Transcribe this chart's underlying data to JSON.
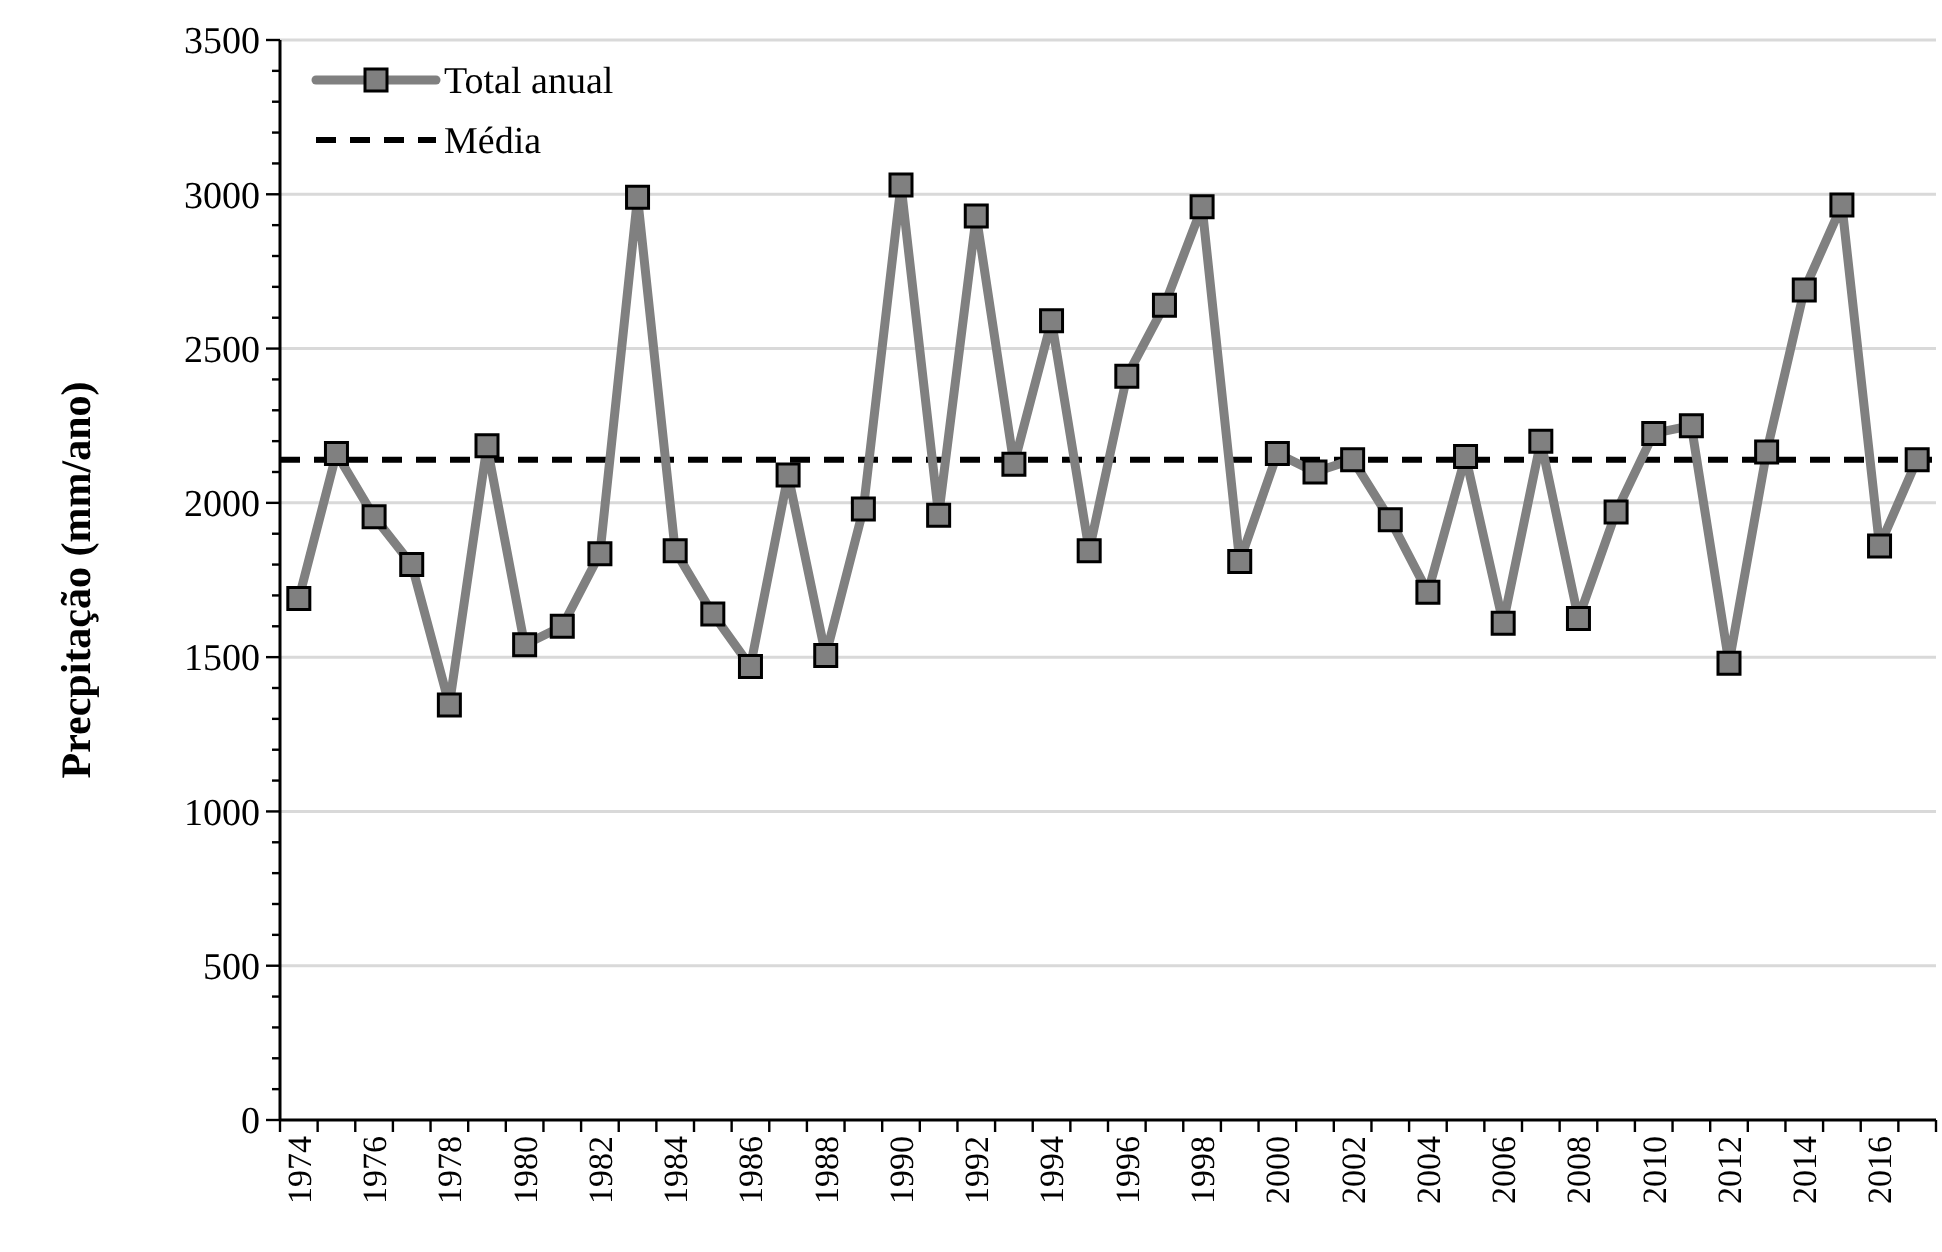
{
  "chart_data": {
    "type": "line",
    "ylabel": "Precpitação (mm/ano)",
    "categories": [
      "1974",
      null,
      "1976",
      null,
      "1978",
      null,
      "1980",
      null,
      "1982",
      null,
      "1984",
      null,
      "1986",
      null,
      "1988",
      null,
      "1990",
      null,
      "1992",
      null,
      "1994",
      null,
      "1996",
      null,
      "1998",
      null,
      "2000",
      null,
      "2002",
      null,
      "2004",
      null,
      "2006",
      null,
      "2008",
      null,
      "2010",
      null,
      "2012",
      null,
      "2014",
      null,
      "2016",
      null
    ],
    "series": [
      {
        "name": "Total anual",
        "color": "#808080",
        "values": [
          1690,
          2160,
          1955,
          1800,
          1345,
          2185,
          1540,
          1600,
          1835,
          2990,
          1845,
          1640,
          1470,
          2090,
          1505,
          1980,
          3030,
          1960,
          2930,
          2125,
          2590,
          1845,
          2410,
          2640,
          2960,
          1810,
          2160,
          2100,
          2140,
          1945,
          1710,
          2150,
          1610,
          2200,
          1625,
          1970,
          2225,
          2250,
          1480,
          2165,
          2690,
          2965,
          1860,
          2140
        ]
      }
    ],
    "ref_lines": [
      {
        "axis": "y",
        "value": 2140,
        "label": "Média",
        "color": "#000000",
        "line_style": "dashed"
      }
    ],
    "ylim": [
      0,
      3500
    ],
    "yticks": [
      0,
      {
        "value": 100,
        "label": null
      },
      {
        "value": 200,
        "label": null
      },
      {
        "value": 300,
        "label": null
      },
      {
        "value": 400,
        "label": null
      },
      500,
      {
        "value": 600,
        "label": null
      },
      {
        "value": 700,
        "label": null
      },
      {
        "value": 800,
        "label": null
      },
      {
        "value": 900,
        "label": null
      },
      1000,
      {
        "value": 1100,
        "label": null
      },
      {
        "value": 1200,
        "label": null
      },
      {
        "value": 1300,
        "label": null
      },
      {
        "value": 1400,
        "label": null
      },
      1500,
      {
        "value": 1600,
        "label": null
      },
      {
        "value": 1700,
        "label": null
      },
      {
        "value": 1800,
        "label": null
      },
      {
        "value": 1900,
        "label": null
      },
      2000,
      {
        "value": 2100,
        "label": null
      },
      {
        "value": 2200,
        "label": null
      },
      {
        "value": 2300,
        "label": null
      },
      {
        "value": 2400,
        "label": null
      },
      2500,
      {
        "value": 2600,
        "label": null
      },
      {
        "value": 2700,
        "label": null
      },
      {
        "value": 2800,
        "label": null
      },
      {
        "value": 2900,
        "label": null
      },
      3000,
      {
        "value": 3100,
        "label": null
      },
      {
        "value": 3200,
        "label": null
      },
      {
        "value": 3300,
        "label": null
      },
      {
        "value": 3400,
        "label": null
      },
      3500
    ],
    "grid": "y",
    "legend": "top left",
    "marker": "square",
    "line_style": "solid"
  }
}
